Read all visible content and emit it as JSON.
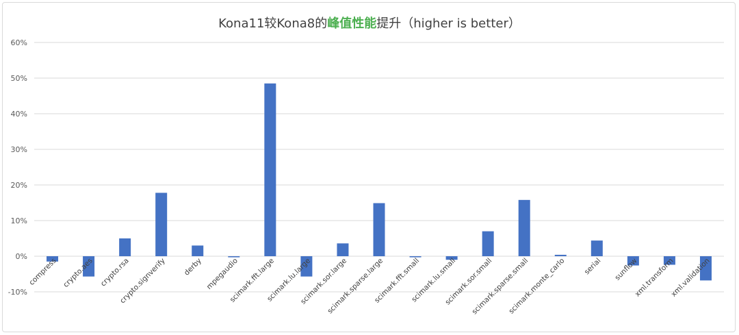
{
  "title": {
    "part1": "Kona11较Kona8的",
    "highlight": "峰值性能",
    "part2": "提升（higher is better）"
  },
  "colors": {
    "bar": "#4472c4",
    "grid": "#d9d9d9",
    "highlight": "#4caf50"
  },
  "chart_data": {
    "type": "bar",
    "title": "Kona11较Kona8的峰值性能提升（higher is better）",
    "xlabel": "",
    "ylabel": "",
    "ylim": [
      -10,
      60
    ],
    "yticks": [
      60,
      50,
      40,
      30,
      20,
      10,
      0,
      -10
    ],
    "ytick_labels": [
      "60%",
      "50%",
      "40%",
      "30%",
      "20%",
      "10%",
      "0%",
      "-10%"
    ],
    "grid": true,
    "categories": [
      "compress",
      "crypto.aes",
      "crypto.rsa",
      "crypto.signverify",
      "derby",
      "mpegaudio",
      "scimark.fft.large",
      "scimark.lu.large",
      "scimark.sor.large",
      "scimark.sparse.large",
      "scimark.fft.small",
      "scimark.lu.small",
      "scimark.sor.small",
      "scimark.sparse.small",
      "scimark.monte_carlo",
      "serial",
      "sunflow",
      "xml.transform",
      "xml.validation"
    ],
    "values": [
      -1.5,
      -5.7,
      5.0,
      17.8,
      3.0,
      -0.3,
      48.5,
      -5.7,
      3.6,
      14.9,
      -0.3,
      -1.0,
      7.0,
      15.8,
      0.4,
      4.4,
      -2.6,
      -2.4,
      -6.8
    ]
  }
}
